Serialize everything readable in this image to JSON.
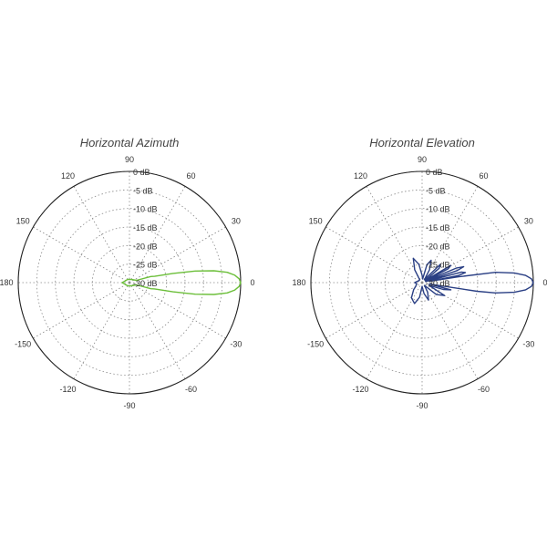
{
  "chart_data": [
    {
      "type": "polar",
      "title": "Horizontal Azimuth",
      "angle_labels": [
        {
          "deg": 0,
          "text": "0"
        },
        {
          "deg": 30,
          "text": "30"
        },
        {
          "deg": 60,
          "text": "60"
        },
        {
          "deg": 90,
          "text": "90"
        },
        {
          "deg": 120,
          "text": "120"
        },
        {
          "deg": 150,
          "text": "150"
        },
        {
          "deg": 180,
          "text": "180"
        },
        {
          "deg": -150,
          "text": "-150"
        },
        {
          "deg": -120,
          "text": "-120"
        },
        {
          "deg": -90,
          "text": "-90"
        },
        {
          "deg": -60,
          "text": "-60"
        },
        {
          "deg": -30,
          "text": "-30"
        }
      ],
      "radial_labels": [
        "0 dB",
        "-5 dB",
        "-10 dB",
        "-15 dB",
        "-20 dB",
        "-25 dB",
        "-30 dB"
      ],
      "r_range_db": [
        -30,
        0
      ],
      "grid": true,
      "series": [
        {
          "color": "#6cbf3a",
          "points": [
            [
              -14,
              -23
            ],
            [
              -12,
              -18
            ],
            [
              -10,
              -12
            ],
            [
              -8,
              -7
            ],
            [
              -6,
              -3.5
            ],
            [
              -4,
              -1.5
            ],
            [
              -2,
              -0.4
            ],
            [
              0,
              0
            ],
            [
              2,
              -0.4
            ],
            [
              4,
              -1.5
            ],
            [
              6,
              -3.5
            ],
            [
              8,
              -7
            ],
            [
              10,
              -12
            ],
            [
              12,
              -18
            ],
            [
              14,
              -23
            ],
            [
              16,
              -24
            ],
            [
              18,
              -28
            ],
            [
              60,
              -29
            ],
            [
              120,
              -29
            ],
            [
              170,
              -28.5
            ],
            [
              180,
              -28
            ],
            [
              -170,
              -28.5
            ],
            [
              -120,
              -29
            ],
            [
              -60,
              -29
            ],
            [
              -18,
              -28
            ],
            [
              -16,
              -24
            ],
            [
              -14,
              -23
            ]
          ]
        }
      ]
    },
    {
      "type": "polar",
      "title": "Horizontal Elevation",
      "angle_labels": [
        {
          "deg": 0,
          "text": "0"
        },
        {
          "deg": 30,
          "text": "30"
        },
        {
          "deg": 60,
          "text": "60"
        },
        {
          "deg": 90,
          "text": "90"
        },
        {
          "deg": 120,
          "text": "120"
        },
        {
          "deg": 150,
          "text": "150"
        },
        {
          "deg": 180,
          "text": "180"
        },
        {
          "deg": -150,
          "text": "-150"
        },
        {
          "deg": -120,
          "text": "-120"
        },
        {
          "deg": -90,
          "text": "-90"
        },
        {
          "deg": -60,
          "text": "-60"
        },
        {
          "deg": -30,
          "text": "-30"
        }
      ],
      "radial_labels": [
        "0 dB",
        "-5 dB",
        "-10 dB",
        "-15 dB",
        "-20 dB",
        "-25 dB",
        "-30 dB"
      ],
      "r_range_db": [
        -30,
        0
      ],
      "grid": true,
      "series": [
        {
          "color": "#2a3f84",
          "points": [
            [
              0,
              0
            ],
            [
              2,
              -0.5
            ],
            [
              4,
              -2
            ],
            [
              6,
              -5
            ],
            [
              8,
              -10
            ],
            [
              9,
              -20
            ],
            [
              10,
              -28
            ],
            [
              11,
              -20
            ],
            [
              13,
              -18
            ],
            [
              15,
              -19
            ],
            [
              17,
              -29
            ],
            [
              19,
              -20
            ],
            [
              21,
              -18
            ],
            [
              23,
              -20
            ],
            [
              25,
              -29
            ],
            [
              28,
              -22
            ],
            [
              31,
              -21
            ],
            [
              34,
              -29
            ],
            [
              40,
              -24
            ],
            [
              45,
              -23
            ],
            [
              52,
              -29
            ],
            [
              60,
              -26
            ],
            [
              68,
              -23.5
            ],
            [
              75,
              -25
            ],
            [
              82,
              -29
            ],
            [
              90,
              -28
            ],
            [
              100,
              -25
            ],
            [
              110,
              -23
            ],
            [
              120,
              -26
            ],
            [
              130,
              -29
            ],
            [
              150,
              -29
            ],
            [
              170,
              -28.5
            ],
            [
              180,
              -28
            ],
            [
              -170,
              -28.5
            ],
            [
              -150,
              -28
            ],
            [
              -140,
              -27
            ],
            [
              -125,
              -25
            ],
            [
              -110,
              -24
            ],
            [
              -100,
              -26
            ],
            [
              -90,
              -29
            ],
            [
              -80,
              -27
            ],
            [
              -70,
              -25
            ],
            [
              -60,
              -27
            ],
            [
              -50,
              -29
            ],
            [
              -40,
              -25
            ],
            [
              -30,
              -23
            ],
            [
              -22,
              -28
            ],
            [
              -18,
              -24
            ],
            [
              -14,
              -22
            ],
            [
              -11,
              -28
            ],
            [
              -9,
              -15
            ],
            [
              -8,
              -10
            ],
            [
              -6,
              -5
            ],
            [
              -4,
              -2
            ],
            [
              -2,
              -0.5
            ],
            [
              0,
              0
            ]
          ]
        }
      ]
    }
  ]
}
